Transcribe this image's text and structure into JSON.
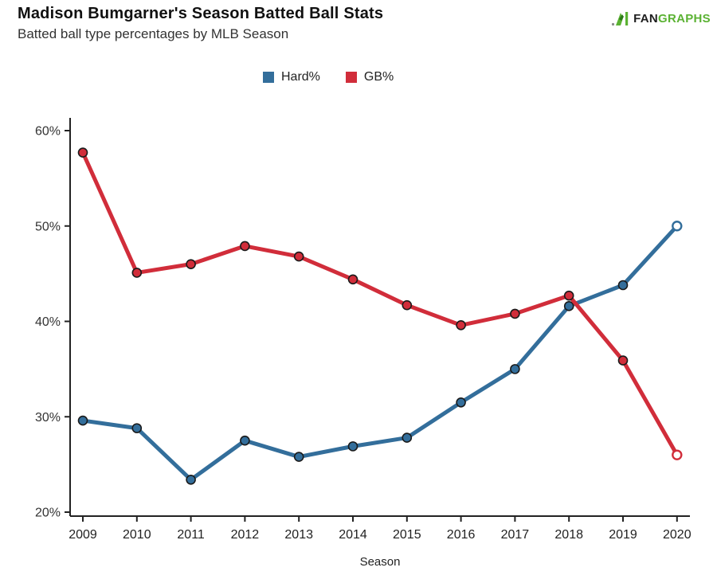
{
  "header": {
    "title": "Madison Bumgarner's Season Batted Ball Stats",
    "subtitle": "Batted ball type percentages by MLB Season"
  },
  "logo": {
    "fan": "FAN",
    "graphs": "GRAPHS",
    "green": "#5BB233",
    "dark": "#1e1e1e"
  },
  "legend": {
    "items": [
      {
        "label": "Hard%",
        "color": "#336E9B"
      },
      {
        "label": "GB%",
        "color": "#D12D3A"
      }
    ]
  },
  "chart_data": {
    "type": "line",
    "title": "Madison Bumgarner's Season Batted Ball Stats",
    "subtitle": "Batted ball type percentages by MLB Season",
    "xlabel": "Season",
    "ylabel": "",
    "x": [
      "2009",
      "2010",
      "2011",
      "2012",
      "2013",
      "2014",
      "2015",
      "2016",
      "2017",
      "2018",
      "2019",
      "2020"
    ],
    "yticks": [
      20,
      30,
      40,
      50,
      60
    ],
    "ytick_suffix": "%",
    "ylim": [
      20,
      61.5
    ],
    "grid": false,
    "legend_position": "top-center",
    "axis_color": "#222222",
    "tick_label_color": "#333333",
    "series": [
      {
        "name": "Hard%",
        "color": "#336E9B",
        "open_last_point": true,
        "values": [
          29.6,
          28.8,
          23.4,
          27.5,
          25.8,
          26.9,
          27.8,
          31.5,
          35.0,
          41.6,
          43.8,
          50.0
        ]
      },
      {
        "name": "GB%",
        "color": "#D12D3A",
        "open_last_point": true,
        "values": [
          57.7,
          45.1,
          46.0,
          47.9,
          46.8,
          44.4,
          41.7,
          39.6,
          40.8,
          42.7,
          35.9,
          26.0
        ]
      }
    ]
  }
}
